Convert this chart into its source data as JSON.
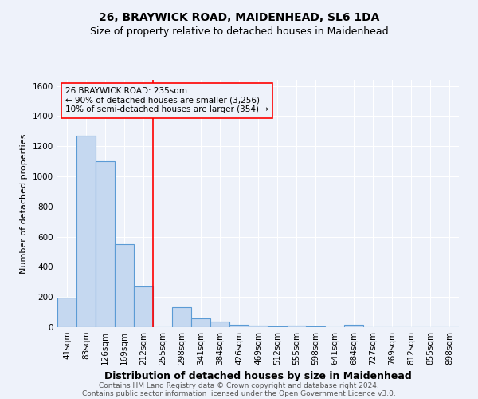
{
  "title1": "26, BRAYWICK ROAD, MAIDENHEAD, SL6 1DA",
  "title2": "Size of property relative to detached houses in Maidenhead",
  "xlabel": "Distribution of detached houses by size in Maidenhead",
  "ylabel": "Number of detached properties",
  "footer1": "Contains HM Land Registry data © Crown copyright and database right 2024.",
  "footer2": "Contains public sector information licensed under the Open Government Licence v3.0.",
  "categories": [
    "41sqm",
    "83sqm",
    "126sqm",
    "169sqm",
    "212sqm",
    "255sqm",
    "298sqm",
    "341sqm",
    "384sqm",
    "426sqm",
    "469sqm",
    "512sqm",
    "555sqm",
    "598sqm",
    "641sqm",
    "684sqm",
    "727sqm",
    "769sqm",
    "812sqm",
    "855sqm",
    "898sqm"
  ],
  "values": [
    197,
    1270,
    1100,
    550,
    270,
    0,
    130,
    60,
    35,
    15,
    10,
    5,
    8,
    5,
    0,
    18,
    0,
    0,
    0,
    0,
    0
  ],
  "bar_color": "#c5d8f0",
  "bar_edge_color": "#5b9bd5",
  "vline_color": "red",
  "vline_x": 4.5,
  "annotation_text": "26 BRAYWICK ROAD: 235sqm\n← 90% of detached houses are smaller (3,256)\n10% of semi-detached houses are larger (354) →",
  "ylim": [
    0,
    1640
  ],
  "yticks": [
    0,
    200,
    400,
    600,
    800,
    1000,
    1200,
    1400,
    1600
  ],
  "bg_color": "#eef2fa",
  "grid_color": "white",
  "title1_fontsize": 10,
  "title2_fontsize": 9,
  "xlabel_fontsize": 9,
  "ylabel_fontsize": 8,
  "tick_fontsize": 7.5,
  "footer_fontsize": 6.5,
  "annot_fontsize": 7.5
}
